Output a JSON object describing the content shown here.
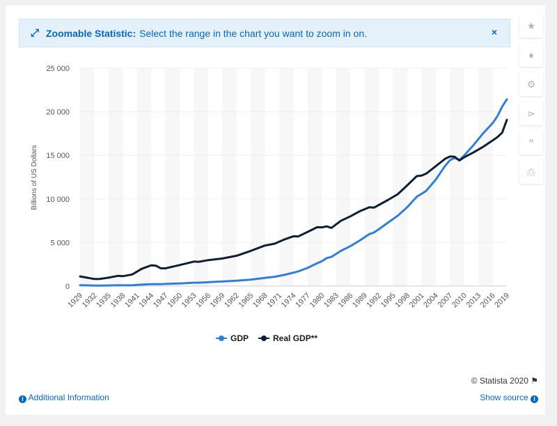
{
  "banner": {
    "label": "Zoomable Statistic:",
    "message": "Select the range in the chart you want to zoom in on.",
    "close": "×"
  },
  "sidebar": {
    "icons": [
      "star-icon",
      "bell-icon",
      "gear-icon",
      "share-icon",
      "quote-icon",
      "print-icon"
    ]
  },
  "credit": "© Statista 2020",
  "footer": {
    "additional_info": "Additional Information",
    "show_source": "Show source"
  },
  "chart_data": {
    "type": "line",
    "title": "",
    "xlabel": "",
    "ylabel": "Billions of US Dollars",
    "ylim": [
      0,
      25000
    ],
    "yticks": [
      0,
      5000,
      10000,
      15000,
      20000,
      25000
    ],
    "ytick_labels": [
      "0",
      "5 000",
      "10 000",
      "15 000",
      "20 000",
      "25 000"
    ],
    "xlim": [
      1929,
      2019
    ],
    "xtick_labels": [
      "1929",
      "1932",
      "1935",
      "1938",
      "1941",
      "1944",
      "1947",
      "1950",
      "1953",
      "1956",
      "1959",
      "1962",
      "1965",
      "1968",
      "1971",
      "1974",
      "1977",
      "1980",
      "1983",
      "1986",
      "1989",
      "1992",
      "1995",
      "1998",
      "2001",
      "2004",
      "2007",
      "2010",
      "2013",
      "2016",
      "2019"
    ],
    "grid": true,
    "legend_position": "bottom",
    "x": [
      1929,
      1932,
      1933,
      1935,
      1937,
      1938,
      1940,
      1942,
      1944,
      1945,
      1946,
      1947,
      1950,
      1953,
      1954,
      1956,
      1959,
      1962,
      1965,
      1968,
      1970,
      1972,
      1974,
      1975,
      1977,
      1979,
      1980,
      1981,
      1982,
      1984,
      1986,
      1988,
      1990,
      1991,
      1992,
      1994,
      1996,
      1998,
      2000,
      2001,
      2002,
      2004,
      2006,
      2007,
      2008,
      2009,
      2010,
      2012,
      2014,
      2016,
      2017,
      2018,
      2019
    ],
    "series": [
      {
        "name": "GDP",
        "color": "#2f7ed8",
        "values": [
          105,
          60,
          57,
          74,
          94,
          87,
          103,
          166,
          227,
          228,
          227,
          250,
          300,
          390,
          391,
          449,
          524,
          618,
          743,
          942,
          1073,
          1279,
          1545,
          1684,
          2086,
          2627,
          2857,
          3207,
          3345,
          4041,
          4579,
          5236,
          5963,
          6158,
          6520,
          7309,
          8073,
          9063,
          10252,
          10582,
          10936,
          12214,
          13815,
          14452,
          14713,
          14449,
          14992,
          16197,
          17522,
          18707,
          19485,
          20580,
          21433
        ]
      },
      {
        "name": "Real GDP**",
        "color": "#0d1f33",
        "values": [
          1109,
          815,
          806,
          963,
          1177,
          1138,
          1331,
          1979,
          2390,
          2340,
          2046,
          2034,
          2409,
          2812,
          2788,
          2976,
          3159,
          3486,
          4041,
          4658,
          4864,
          5339,
          5717,
          5693,
          6226,
          6756,
          6738,
          6855,
          6674,
          7494,
          8002,
          8591,
          9045,
          9009,
          9307,
          9904,
          10540,
          11570,
          12620,
          12682,
          12908,
          13755,
          14613,
          14874,
          14830,
          14419,
          14784,
          15355,
          15982,
          16716,
          17096,
          17599,
          19073
        ]
      }
    ]
  }
}
